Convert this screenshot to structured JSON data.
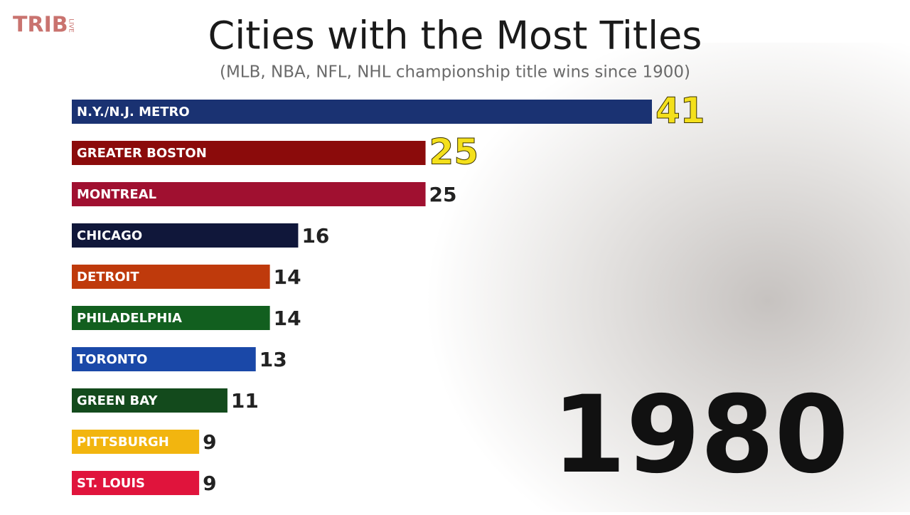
{
  "logo": {
    "main": "TRIB",
    "sub": "LIVE"
  },
  "chart_data": {
    "type": "bar",
    "orientation": "horizontal",
    "title": "Cities with the Most Titles",
    "subtitle": "(MLB, NBA, NFL, NHL championship title wins since 1900)",
    "year": "1980",
    "categories": [
      "N.Y./N.J. METRO",
      "GREATER BOSTON",
      "MONTREAL",
      "CHICAGO",
      "DETROIT",
      "PHILADELPHIA",
      "TORONTO",
      "GREEN BAY",
      "PITTSBURGH",
      "ST. LOUIS"
    ],
    "values": [
      41,
      25,
      25,
      16,
      14,
      14,
      13,
      11,
      9,
      9
    ],
    "colors": [
      "#1a3272",
      "#8b0b0b",
      "#a01030",
      "#10173a",
      "#bf3a0c",
      "#125f1f",
      "#1a48a8",
      "#134a1c",
      "#f2b50f",
      "#e0143c"
    ],
    "label_colors": [
      "#f4e01c",
      "#f4e01c",
      "#222222",
      "#222222",
      "#222222",
      "#222222",
      "#222222",
      "#222222",
      "#222222",
      "#222222"
    ]
  }
}
